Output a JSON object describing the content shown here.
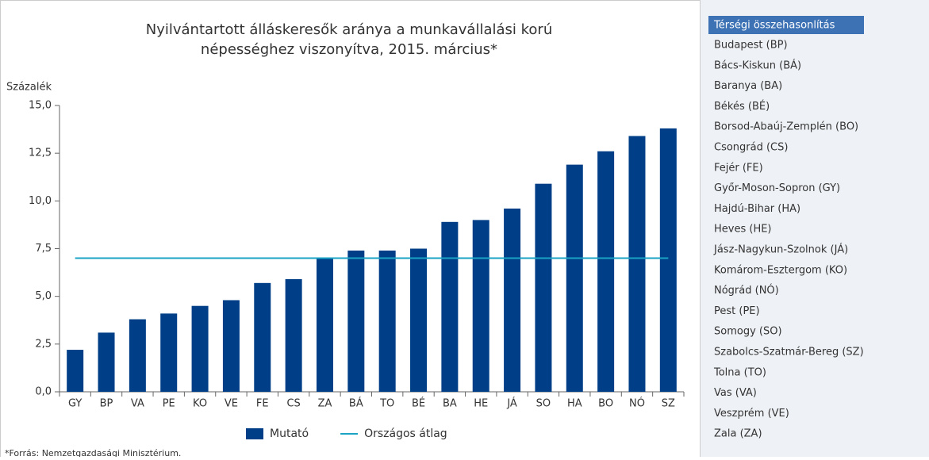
{
  "chart_data": {
    "type": "bar",
    "title": [
      "Nyilvántartott álláskeresők aránya a munkavállalási korú",
      "népességhez viszonyítva, 2015. március*"
    ],
    "y_label": "Százalék",
    "categories": [
      "GY",
      "BP",
      "VA",
      "PE",
      "KO",
      "VE",
      "FE",
      "CS",
      "ZA",
      "BÁ",
      "TO",
      "BÉ",
      "BA",
      "HE",
      "JÁ",
      "SO",
      "HA",
      "BO",
      "NÓ",
      "SZ"
    ],
    "series": [
      {
        "name": "Mutató",
        "color": "#003f87",
        "type": "bar",
        "values": [
          2.2,
          3.1,
          3.8,
          4.1,
          4.5,
          4.8,
          5.7,
          5.9,
          7.0,
          7.4,
          7.4,
          7.5,
          8.9,
          9.0,
          9.6,
          10.9,
          11.9,
          12.6,
          13.4,
          13.8
        ]
      },
      {
        "name": "Országos átlag",
        "color": "#1aa3c4",
        "type": "line",
        "values": [
          7.0,
          7.0,
          7.0,
          7.0,
          7.0,
          7.0,
          7.0,
          7.0,
          7.0,
          7.0,
          7.0,
          7.0,
          7.0,
          7.0,
          7.0,
          7.0,
          7.0,
          7.0,
          7.0,
          7.0
        ]
      }
    ],
    "ylim": [
      0,
      15
    ],
    "yticks": [
      {
        "value": 0,
        "label": "0,0"
      },
      {
        "value": 2.5,
        "label": "2,5"
      },
      {
        "value": 5,
        "label": "5,0"
      },
      {
        "value": 7.5,
        "label": "7,5"
      },
      {
        "value": 10,
        "label": "10,0"
      },
      {
        "value": 12.5,
        "label": "12,5"
      },
      {
        "value": 15,
        "label": "15,0"
      }
    ],
    "grid": false,
    "legend": "bottom",
    "footnote": "*Forrás: Nemzetgazdasági Minisztérium."
  },
  "sidebar": {
    "title": "Térségi összehasonlítás",
    "items": [
      "Budapest (BP)",
      "Bács-Kiskun (BÁ)",
      "Baranya (BA)",
      "Békés (BÉ)",
      "Borsod-Abaúj-Zemplén (BO)",
      "Csongrád (CS)",
      "Fejér (FE)",
      "Győr-Moson-Sopron (GY)",
      "Hajdú-Bihar (HA)",
      "Heves (HE)",
      "Jász-Nagykun-Szolnok (JÁ)",
      "Komárom-Esztergom (KO)",
      "Nógrád (NÓ)",
      "Pest (PE)",
      "Somogy (SO)",
      "Szabolcs-Szatmár-Bereg (SZ)",
      "Tolna (TO)",
      "Vas (VA)",
      "Veszprém (VE)",
      "Zala (ZA)"
    ]
  }
}
